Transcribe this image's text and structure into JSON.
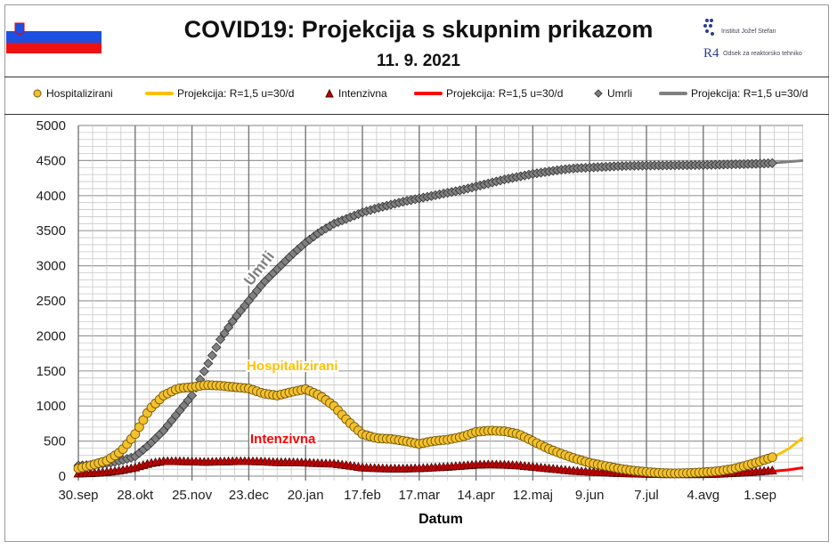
{
  "header": {
    "title": "COVID19: Projekcija s skupnim prikazom",
    "date": "11. 9. 2021",
    "logo_ijs": "Institut Jožef Stefan",
    "logo_r4": "Odsek za reaktorsko tehniko",
    "logo_r4_mark": "R4"
  },
  "legend": [
    {
      "label": "Hospitalizirani",
      "marker": "circle",
      "color": "#f2c12e"
    },
    {
      "label": "Projekcija: R=1,5 u=30/d",
      "marker": "line",
      "color": "#ffc000"
    },
    {
      "label": "Intenzivna",
      "marker": "triangle",
      "color": "#c00000"
    },
    {
      "label": "Projekcija: R=1,5 u=30/d",
      "marker": "line",
      "color": "#ff0000"
    },
    {
      "label": "Umrli",
      "marker": "diamond",
      "color": "#808080"
    },
    {
      "label": "Projekcija: R=1,5 u=30/d",
      "marker": "line",
      "color": "#808080"
    }
  ],
  "chart_data": {
    "type": "line",
    "xlabel": "Datum",
    "ylabel": "",
    "ylim": [
      0,
      5000
    ],
    "yticks": [
      0,
      500,
      1000,
      1500,
      2000,
      2500,
      3000,
      3500,
      4000,
      4500,
      5000
    ],
    "xtick_labels": [
      "30.sep",
      "28.okt",
      "25.nov",
      "23.dec",
      "20.jan",
      "17.feb",
      "17.mar",
      "14.apr",
      "12.maj",
      "9.jun",
      "7.jul",
      "4.avg",
      "1.sep"
    ],
    "x_start": "30.sep.2020",
    "x_end": "22.sep.2021",
    "x_step": "weekly from 30.sep.2020",
    "grid": true,
    "annotations": [
      {
        "text": "Umrli",
        "color": "#808080"
      },
      {
        "text": "Hospitalizirani",
        "color": "#ffc000"
      },
      {
        "text": "Intenzivna",
        "color": "#ff0000"
      }
    ],
    "series": [
      {
        "name": "Hospitalizirani",
        "color": "#f2c12e",
        "marker": "circle",
        "values": [
          110,
          160,
          220,
          350,
          600,
          950,
          1150,
          1250,
          1270,
          1300,
          1290,
          1270,
          1250,
          1180,
          1150,
          1200,
          1240,
          1150,
          1000,
          780,
          600,
          540,
          530,
          500,
          460,
          500,
          520,
          560,
          630,
          650,
          640,
          600,
          500,
          400,
          320,
          250,
          190,
          150,
          110,
          80,
          60,
          45,
          40,
          45,
          55,
          70,
          100,
          150,
          210,
          280
        ]
      },
      {
        "name": "Projekcija: R=1,5 u=30/d",
        "color": "#ffc000",
        "projection_of": "Hospitalizirani",
        "from": "8.sep.2021",
        "values": [
          280,
          390,
          550
        ]
      },
      {
        "name": "Intenzivna",
        "color": "#c00000",
        "marker": "triangle",
        "values": [
          25,
          30,
          45,
          70,
          110,
          170,
          200,
          200,
          195,
          190,
          195,
          200,
          200,
          195,
          185,
          185,
          180,
          170,
          165,
          140,
          110,
          100,
          95,
          95,
          100,
          110,
          120,
          135,
          150,
          155,
          150,
          140,
          120,
          100,
          80,
          60,
          50,
          40,
          30,
          25,
          20,
          15,
          15,
          15,
          15,
          20,
          30,
          40,
          55,
          70
        ]
      },
      {
        "name": "Projekcija: R=1,5 u=30/d",
        "color": "#ff0000",
        "projection_of": "Intenzivna",
        "from": "8.sep.2021",
        "values": [
          70,
          90,
          120
        ]
      },
      {
        "name": "Umrli",
        "color": "#808080",
        "marker": "diamond",
        "values": [
          150,
          160,
          180,
          220,
          280,
          450,
          650,
          900,
          1150,
          1550,
          1950,
          2250,
          2500,
          2750,
          2950,
          3150,
          3330,
          3480,
          3600,
          3680,
          3760,
          3820,
          3870,
          3920,
          3960,
          4000,
          4040,
          4080,
          4130,
          4180,
          4230,
          4270,
          4310,
          4340,
          4370,
          4390,
          4400,
          4410,
          4420,
          4425,
          4428,
          4430,
          4432,
          4434,
          4436,
          4440,
          4445,
          4450,
          4455,
          4465
        ]
      },
      {
        "name": "Projekcija: R=1,5 u=30/d",
        "color": "#808080",
        "projection_of": "Umrli",
        "from": "8.sep.2021",
        "values": [
          4465,
          4483,
          4500
        ]
      }
    ]
  }
}
